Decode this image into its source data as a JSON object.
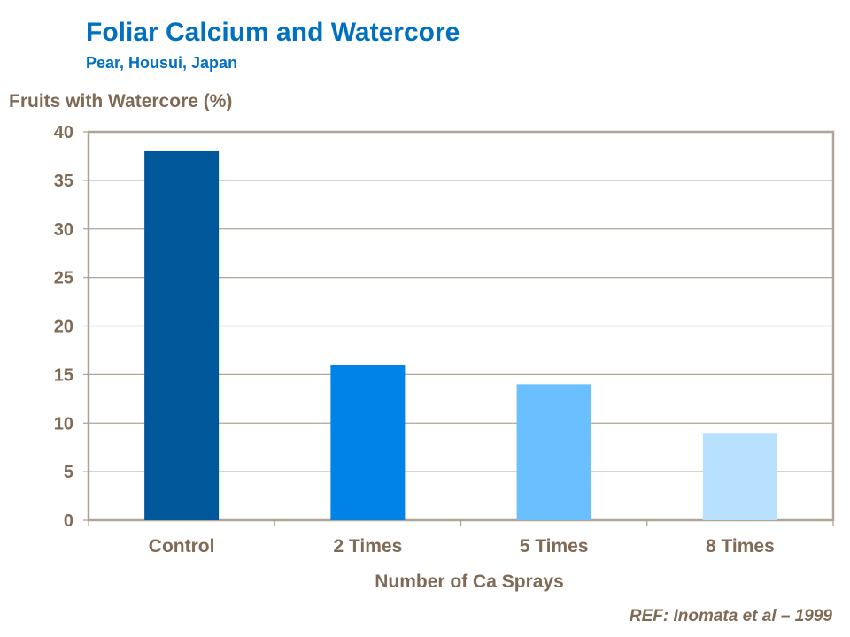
{
  "chart_data": {
    "type": "bar",
    "title": "Foliar Calcium and Watercore",
    "subtitle": "Pear, Housui, Japan",
    "ylabel": "Fruits with Watercore (%)",
    "xlabel": "Number of Ca Sprays",
    "categories": [
      "Control",
      "2 Times",
      "5 Times",
      "8 Times"
    ],
    "values": [
      38,
      16,
      14,
      9
    ],
    "colors": [
      "#005799",
      "#0083E6",
      "#6ABFFF",
      "#B8E0FF"
    ],
    "ylim": [
      0,
      40
    ],
    "yticks": [
      0,
      5,
      10,
      15,
      20,
      25,
      30,
      35,
      40
    ],
    "grid": true,
    "axis_color": "#B0A496",
    "reference": "REF: Inomata et al – 1999"
  }
}
